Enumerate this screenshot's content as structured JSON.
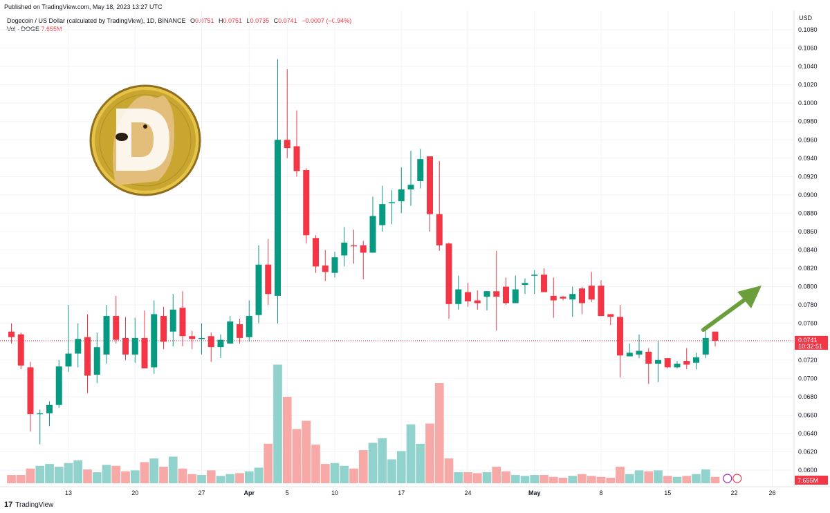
{
  "header": {
    "published": "Published on TradingView.com, May 18, 2023 13:27 UTC",
    "symbol": "Dogecoin / US Dollar (calculated by TradingView), 1D, BINANCE",
    "o_label": "O",
    "o_value": "0.0751",
    "h_label": "H",
    "h_value": "0.0751",
    "l_label": "L",
    "l_value": "0.0735",
    "c_label": "C",
    "c_value": "0.0741",
    "change": "−0.0007 (−0.94%)",
    "vol_label": "Vol · DOGE",
    "vol_value": "7.655M"
  },
  "footer": {
    "brand": "TradingView",
    "brand_mark": "17"
  },
  "colors": {
    "up": "#089981",
    "down": "#f23645",
    "up_vol": "#92d2cc",
    "down_vol": "#f7a9a7",
    "arrow": "#6a9e3a",
    "grid": "#f0f3fa"
  },
  "chart_data": {
    "type": "candlestick",
    "currency_label": "USD",
    "price_axis": {
      "min": 0.059,
      "max": 0.109,
      "ticks": [
        "0.1080",
        "0.1060",
        "0.1040",
        "0.1020",
        "0.1000",
        "0.0980",
        "0.0960",
        "0.0940",
        "0.0920",
        "0.0900",
        "0.0880",
        "0.0860",
        "0.0840",
        "0.0820",
        "0.0800",
        "0.0780",
        "0.0760",
        "0.0740",
        "0.0720",
        "0.0700",
        "0.0680",
        "0.0660",
        "0.0640",
        "0.0620",
        "0.0600"
      ]
    },
    "x_ticks": [
      {
        "label": "13",
        "bar": 6
      },
      {
        "label": "20",
        "bar": 13
      },
      {
        "label": "27",
        "bar": 20
      },
      {
        "label": "Apr",
        "bar": 25
      },
      {
        "label": "5",
        "bar": 29
      },
      {
        "label": "10",
        "bar": 34
      },
      {
        "label": "17",
        "bar": 41
      },
      {
        "label": "24",
        "bar": 48
      },
      {
        "label": "May",
        "bar": 55
      },
      {
        "label": "8",
        "bar": 62
      },
      {
        "label": "15",
        "bar": 69
      },
      {
        "label": "22",
        "bar": 76
      },
      {
        "label": "26",
        "bar": 80
      }
    ],
    "last_price": "0.0741",
    "countdown": "10:32:51",
    "volume_label": "7.655M",
    "candles": [
      {
        "o": 0.0751,
        "h": 0.076,
        "l": 0.0738,
        "c": 0.0745,
        "v": 0.9
      },
      {
        "o": 0.0748,
        "h": 0.075,
        "l": 0.071,
        "c": 0.0714,
        "v": 0.9
      },
      {
        "o": 0.0712,
        "h": 0.0718,
        "l": 0.0642,
        "c": 0.0661,
        "v": 1.6
      },
      {
        "o": 0.0661,
        "h": 0.0666,
        "l": 0.0628,
        "c": 0.0662,
        "v": 1.9
      },
      {
        "o": 0.0662,
        "h": 0.0675,
        "l": 0.0648,
        "c": 0.0671,
        "v": 2.1
      },
      {
        "o": 0.0671,
        "h": 0.072,
        "l": 0.0668,
        "c": 0.0713,
        "v": 1.8
      },
      {
        "o": 0.0713,
        "h": 0.078,
        "l": 0.0707,
        "c": 0.0727,
        "v": 2.2
      },
      {
        "o": 0.0727,
        "h": 0.076,
        "l": 0.0712,
        "c": 0.0743,
        "v": 2.5
      },
      {
        "o": 0.0745,
        "h": 0.077,
        "l": 0.0684,
        "c": 0.0703,
        "v": 1.5
      },
      {
        "o": 0.0704,
        "h": 0.075,
        "l": 0.0695,
        "c": 0.0734,
        "v": 1.2
      },
      {
        "o": 0.0726,
        "h": 0.078,
        "l": 0.0716,
        "c": 0.0768,
        "v": 2.0
      },
      {
        "o": 0.0768,
        "h": 0.079,
        "l": 0.0738,
        "c": 0.0742,
        "v": 1.9
      },
      {
        "o": 0.0744,
        "h": 0.0767,
        "l": 0.072,
        "c": 0.0726,
        "v": 1.3
      },
      {
        "o": 0.0726,
        "h": 0.0766,
        "l": 0.0717,
        "c": 0.0744,
        "v": 1.4
      },
      {
        "o": 0.0744,
        "h": 0.0774,
        "l": 0.0714,
        "c": 0.0711,
        "v": 2.3
      },
      {
        "o": 0.0712,
        "h": 0.0785,
        "l": 0.0705,
        "c": 0.077,
        "v": 2.7
      },
      {
        "o": 0.0768,
        "h": 0.0778,
        "l": 0.0732,
        "c": 0.074,
        "v": 1.8
      },
      {
        "o": 0.0751,
        "h": 0.0792,
        "l": 0.0735,
        "c": 0.0775,
        "v": 2.9
      },
      {
        "o": 0.0777,
        "h": 0.0795,
        "l": 0.0735,
        "c": 0.0746,
        "v": 1.6
      },
      {
        "o": 0.0746,
        "h": 0.0752,
        "l": 0.0732,
        "c": 0.0743,
        "v": 1.0
      },
      {
        "o": 0.0743,
        "h": 0.076,
        "l": 0.0726,
        "c": 0.0744,
        "v": 0.9
      },
      {
        "o": 0.0746,
        "h": 0.075,
        "l": 0.0718,
        "c": 0.0734,
        "v": 1.4
      },
      {
        "o": 0.0734,
        "h": 0.0748,
        "l": 0.0722,
        "c": 0.0742,
        "v": 0.8
      },
      {
        "o": 0.0738,
        "h": 0.0768,
        "l": 0.0738,
        "c": 0.0762,
        "v": 1.0
      },
      {
        "o": 0.0759,
        "h": 0.0765,
        "l": 0.0738,
        "c": 0.0744,
        "v": 1.1
      },
      {
        "o": 0.0745,
        "h": 0.0785,
        "l": 0.074,
        "c": 0.0768,
        "v": 1.3
      },
      {
        "o": 0.0769,
        "h": 0.0845,
        "l": 0.076,
        "c": 0.0824,
        "v": 1.7
      },
      {
        "o": 0.0824,
        "h": 0.0852,
        "l": 0.078,
        "c": 0.0792,
        "v": 4.3
      },
      {
        "o": 0.079,
        "h": 0.1048,
        "l": 0.076,
        "c": 0.096,
        "v": 12.9
      },
      {
        "o": 0.096,
        "h": 0.1037,
        "l": 0.094,
        "c": 0.0951,
        "v": 9.4
      },
      {
        "o": 0.0953,
        "h": 0.0992,
        "l": 0.092,
        "c": 0.0926,
        "v": 5.9
      },
      {
        "o": 0.0927,
        "h": 0.0929,
        "l": 0.0847,
        "c": 0.0856,
        "v": 6.8
      },
      {
        "o": 0.0853,
        "h": 0.0856,
        "l": 0.0815,
        "c": 0.0822,
        "v": 4.2
      },
      {
        "o": 0.0823,
        "h": 0.084,
        "l": 0.0806,
        "c": 0.0816,
        "v": 2.1
      },
      {
        "o": 0.0815,
        "h": 0.0838,
        "l": 0.081,
        "c": 0.0832,
        "v": 2.2
      },
      {
        "o": 0.0834,
        "h": 0.0865,
        "l": 0.0822,
        "c": 0.0848,
        "v": 1.9
      },
      {
        "o": 0.0845,
        "h": 0.0862,
        "l": 0.0825,
        "c": 0.0844,
        "v": 1.6
      },
      {
        "o": 0.0845,
        "h": 0.085,
        "l": 0.0808,
        "c": 0.0837,
        "v": 3.6
      },
      {
        "o": 0.0837,
        "h": 0.0898,
        "l": 0.084,
        "c": 0.0877,
        "v": 4.4
      },
      {
        "o": 0.0867,
        "h": 0.091,
        "l": 0.086,
        "c": 0.089,
        "v": 4.9
      },
      {
        "o": 0.0891,
        "h": 0.0905,
        "l": 0.0868,
        "c": 0.0892,
        "v": 2.6
      },
      {
        "o": 0.0893,
        "h": 0.093,
        "l": 0.088,
        "c": 0.0906,
        "v": 3.5
      },
      {
        "o": 0.0906,
        "h": 0.0948,
        "l": 0.0888,
        "c": 0.0911,
        "v": 6.4
      },
      {
        "o": 0.0915,
        "h": 0.095,
        "l": 0.0907,
        "c": 0.0939,
        "v": 4.3
      },
      {
        "o": 0.0942,
        "h": 0.094,
        "l": 0.086,
        "c": 0.0879,
        "v": 6.5
      },
      {
        "o": 0.0879,
        "h": 0.0937,
        "l": 0.0839,
        "c": 0.0845,
        "v": 10.9
      },
      {
        "o": 0.0847,
        "h": 0.0848,
        "l": 0.0765,
        "c": 0.0781,
        "v": 2.7
      },
      {
        "o": 0.0781,
        "h": 0.0812,
        "l": 0.0775,
        "c": 0.0797,
        "v": 1.2
      },
      {
        "o": 0.0794,
        "h": 0.0804,
        "l": 0.0778,
        "c": 0.0784,
        "v": 1.2
      },
      {
        "o": 0.0785,
        "h": 0.0796,
        "l": 0.0775,
        "c": 0.0782,
        "v": 1.1
      },
      {
        "o": 0.0789,
        "h": 0.0794,
        "l": 0.0774,
        "c": 0.0795,
        "v": 1.2
      },
      {
        "o": 0.0795,
        "h": 0.0839,
        "l": 0.0752,
        "c": 0.0789,
        "v": 1.8
      },
      {
        "o": 0.08,
        "h": 0.081,
        "l": 0.078,
        "c": 0.0782,
        "v": 1.3
      },
      {
        "o": 0.0782,
        "h": 0.0812,
        "l": 0.0782,
        "c": 0.0797,
        "v": 0.9
      },
      {
        "o": 0.0802,
        "h": 0.0809,
        "l": 0.0792,
        "c": 0.0804,
        "v": 0.8
      },
      {
        "o": 0.0812,
        "h": 0.0818,
        "l": 0.0792,
        "c": 0.0813,
        "v": 0.9
      },
      {
        "o": 0.0813,
        "h": 0.082,
        "l": 0.0796,
        "c": 0.0794,
        "v": 0.9
      },
      {
        "o": 0.079,
        "h": 0.081,
        "l": 0.0766,
        "c": 0.0785,
        "v": 0.7
      },
      {
        "o": 0.0789,
        "h": 0.079,
        "l": 0.0785,
        "c": 0.0787,
        "v": 0.6
      },
      {
        "o": 0.0786,
        "h": 0.08,
        "l": 0.0767,
        "c": 0.0792,
        "v": 0.8
      },
      {
        "o": 0.0798,
        "h": 0.08,
        "l": 0.077,
        "c": 0.0782,
        "v": 1.0
      },
      {
        "o": 0.0801,
        "h": 0.0816,
        "l": 0.0783,
        "c": 0.0786,
        "v": 0.8
      },
      {
        "o": 0.0801,
        "h": 0.0807,
        "l": 0.077,
        "c": 0.0768,
        "v": 0.7
      },
      {
        "o": 0.077,
        "h": 0.077,
        "l": 0.0758,
        "c": 0.0767,
        "v": 0.6
      },
      {
        "o": 0.0767,
        "h": 0.078,
        "l": 0.0701,
        "c": 0.0725,
        "v": 1.8
      },
      {
        "o": 0.0724,
        "h": 0.0738,
        "l": 0.0724,
        "c": 0.0728,
        "v": 1.0
      },
      {
        "o": 0.0726,
        "h": 0.0748,
        "l": 0.0722,
        "c": 0.073,
        "v": 1.4
      },
      {
        "o": 0.0729,
        "h": 0.0733,
        "l": 0.0694,
        "c": 0.0716,
        "v": 1.3
      },
      {
        "o": 0.0716,
        "h": 0.0741,
        "l": 0.0696,
        "c": 0.072,
        "v": 1.4
      },
      {
        "o": 0.0722,
        "h": 0.0722,
        "l": 0.0711,
        "c": 0.0712,
        "v": 0.8
      },
      {
        "o": 0.0712,
        "h": 0.0719,
        "l": 0.0711,
        "c": 0.0716,
        "v": 0.7
      },
      {
        "o": 0.0719,
        "h": 0.0733,
        "l": 0.071,
        "c": 0.0715,
        "v": 0.8
      },
      {
        "o": 0.0717,
        "h": 0.0728,
        "l": 0.071,
        "c": 0.0723,
        "v": 1.0
      },
      {
        "o": 0.0726,
        "h": 0.0756,
        "l": 0.0722,
        "c": 0.0744,
        "v": 1.5
      },
      {
        "o": 0.0751,
        "h": 0.0751,
        "l": 0.0735,
        "c": 0.0741,
        "v": 0.7
      }
    ]
  }
}
